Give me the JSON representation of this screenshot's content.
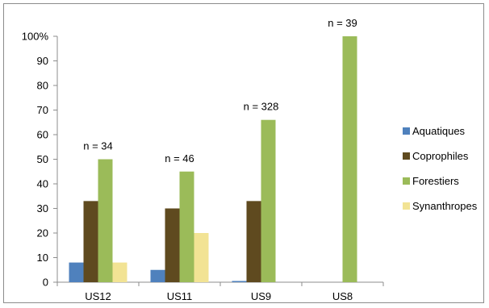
{
  "chart_data": {
    "type": "bar",
    "categories": [
      "US12",
      "US11",
      "US9",
      "US8"
    ],
    "series": [
      {
        "name": "Aquatiques",
        "values": [
          8,
          5,
          0.5,
          0
        ],
        "color": "#4f81bd"
      },
      {
        "name": "Coprophiles",
        "values": [
          33,
          30,
          33,
          0
        ],
        "color": "#5f4a1f"
      },
      {
        "name": "Forestiers",
        "values": [
          50,
          45,
          66,
          100
        ],
        "color": "#9bbb59"
      },
      {
        "name": "Synanthropes",
        "values": [
          8,
          20,
          0,
          0
        ],
        "color": "#f2e394"
      }
    ],
    "y_ticks": [
      "0",
      "10",
      "20",
      "30",
      "40",
      "50",
      "60",
      "70",
      "80",
      "90",
      "100%"
    ],
    "ylim": [
      0,
      100
    ],
    "grid": false,
    "legend_position": "right",
    "annotations": [
      {
        "text": "n = 34",
        "category": "US12"
      },
      {
        "text": "n = 46",
        "category": "US11"
      },
      {
        "text": "n = 328",
        "category": "US9"
      },
      {
        "text": "n = 39",
        "category": "US8"
      }
    ]
  }
}
